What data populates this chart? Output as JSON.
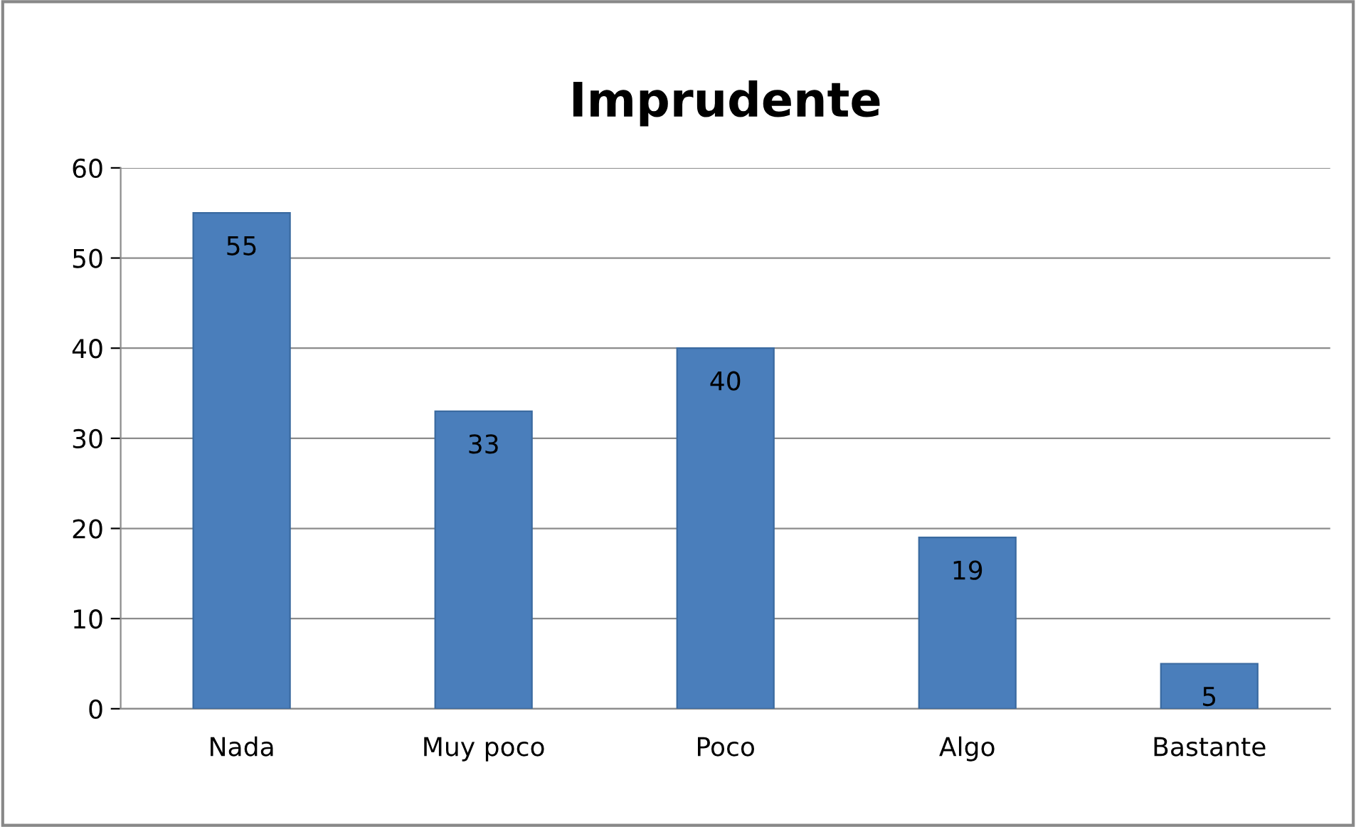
{
  "chart_data": {
    "type": "bar",
    "title": "Imprudente",
    "categories": [
      "Nada",
      "Muy poco",
      "Poco",
      "Algo",
      "Bastante"
    ],
    "values": [
      55,
      33,
      40,
      19,
      5
    ],
    "color": "#4a7ebb",
    "ylim": [
      0,
      60
    ],
    "yticks": [
      0,
      10,
      20,
      30,
      40,
      50,
      60
    ],
    "grid": "y",
    "data_labels": true,
    "legend": false
  }
}
